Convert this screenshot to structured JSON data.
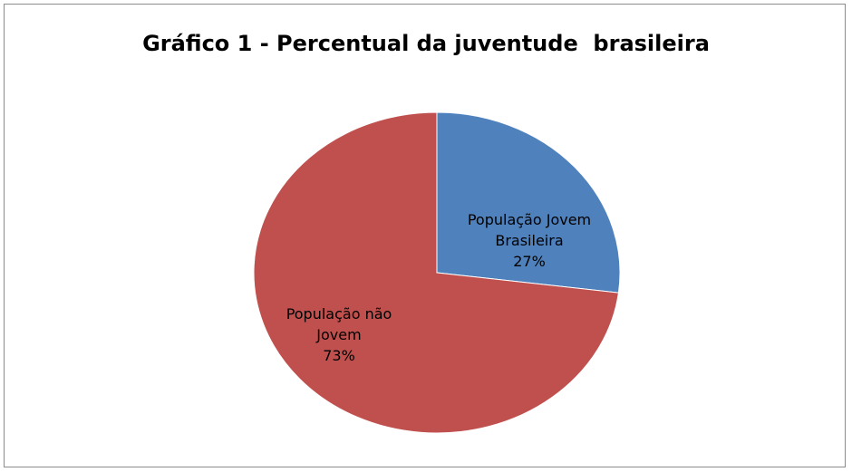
{
  "chart_data": {
    "type": "pie",
    "title": "Gráfico 1 - Percentual da juventude  brasileira",
    "slices": [
      {
        "label_lines": [
          "População Jovem",
          "Brasileira"
        ],
        "value": 27,
        "value_label": "27%",
        "color": "#4f81bd"
      },
      {
        "label_lines": [
          "População não",
          "Jovem"
        ],
        "value": 73,
        "value_label": "73%",
        "color": "#c0504d"
      }
    ],
    "legend": "none"
  }
}
